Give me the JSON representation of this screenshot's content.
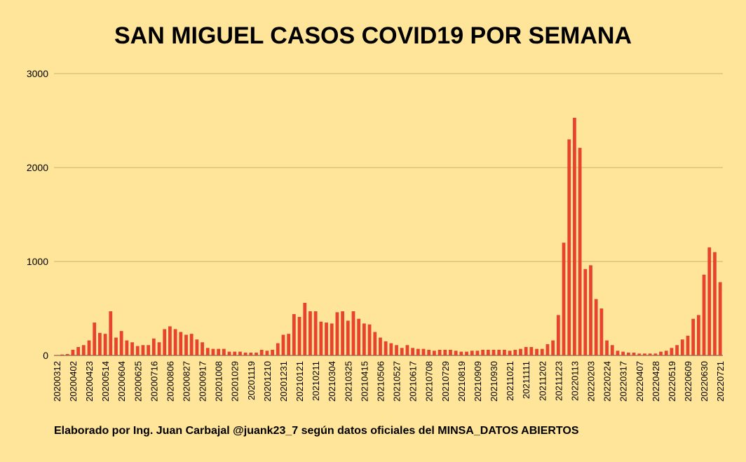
{
  "chart_data": {
    "type": "bar",
    "title": "SAN MIGUEL CASOS COVID19 POR SEMANA",
    "xlabel": "",
    "ylabel": "",
    "ylim": [
      0,
      3000
    ],
    "yticks": [
      0,
      1000,
      2000,
      3000
    ],
    "bar_color": "#E8432F",
    "grid_color": "#C9B46A",
    "start_date": "2020-03-12",
    "label_every": 3,
    "values": [
      5,
      10,
      15,
      60,
      90,
      110,
      160,
      350,
      240,
      230,
      470,
      190,
      260,
      160,
      140,
      100,
      110,
      110,
      180,
      140,
      280,
      310,
      280,
      250,
      220,
      230,
      170,
      140,
      80,
      70,
      70,
      70,
      40,
      40,
      40,
      30,
      30,
      30,
      60,
      50,
      60,
      130,
      220,
      230,
      440,
      410,
      560,
      470,
      470,
      360,
      350,
      340,
      460,
      470,
      370,
      470,
      390,
      340,
      330,
      250,
      190,
      150,
      130,
      110,
      80,
      110,
      80,
      70,
      70,
      60,
      50,
      60,
      60,
      60,
      50,
      40,
      40,
      50,
      50,
      60,
      60,
      60,
      60,
      60,
      50,
      60,
      70,
      90,
      90,
      70,
      70,
      120,
      160,
      430,
      1200,
      2300,
      2530,
      2210,
      920,
      960,
      600,
      500,
      160,
      110,
      50,
      40,
      30,
      30,
      20,
      20,
      20,
      20,
      40,
      50,
      80,
      110,
      170,
      210,
      390,
      430,
      860,
      1150,
      1100,
      780
    ],
    "series": [
      {
        "name": "Casos"
      }
    ]
  },
  "footer": "Elaborado por Ing. Juan Carbajal @juank23_7 según datos oficiales del MINSA_DATOS ABIERTOS"
}
